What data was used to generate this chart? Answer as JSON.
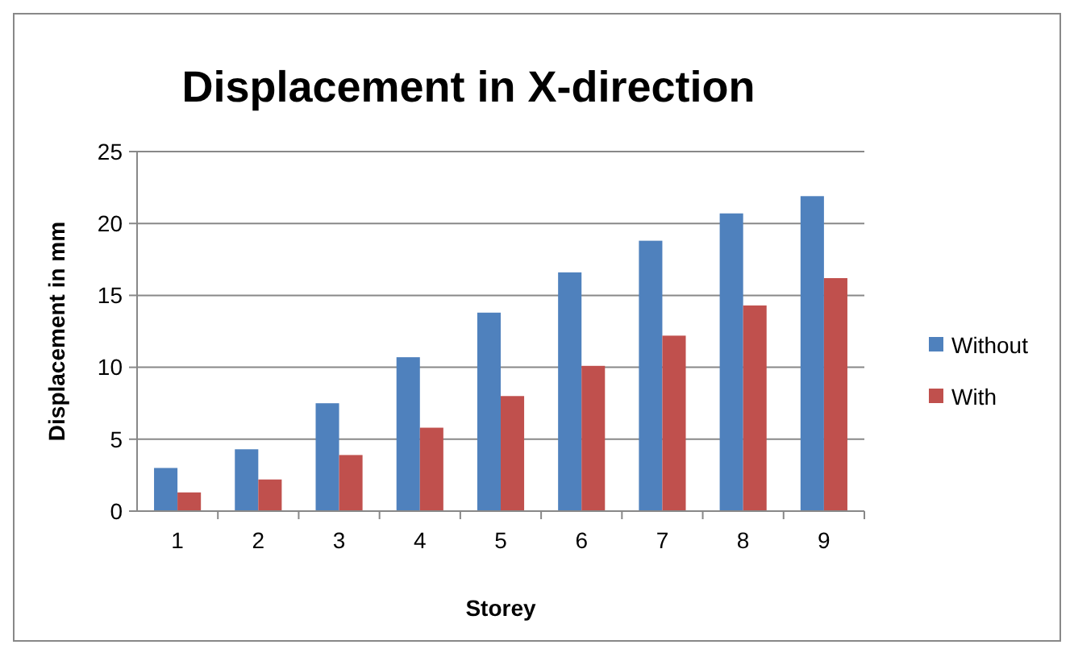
{
  "chart_data": {
    "type": "bar",
    "title": "Displacement in X-direction",
    "xlabel": "Storey",
    "ylabel": "Displacement in mm",
    "categories": [
      "1",
      "2",
      "3",
      "4",
      "5",
      "6",
      "7",
      "8",
      "9"
    ],
    "series": [
      {
        "name": "Without",
        "color": "#4f81bd",
        "values": [
          3.0,
          4.3,
          7.5,
          10.7,
          13.8,
          16.6,
          18.8,
          20.7,
          21.9
        ]
      },
      {
        "name": "With",
        "color": "#c0504d",
        "values": [
          1.3,
          2.2,
          3.9,
          5.8,
          8.0,
          10.1,
          12.2,
          14.3,
          16.2
        ]
      }
    ],
    "ylim": [
      0,
      25
    ],
    "yticks": [
      0,
      5,
      10,
      15,
      20,
      25
    ],
    "grid": "y",
    "legend": "right"
  }
}
